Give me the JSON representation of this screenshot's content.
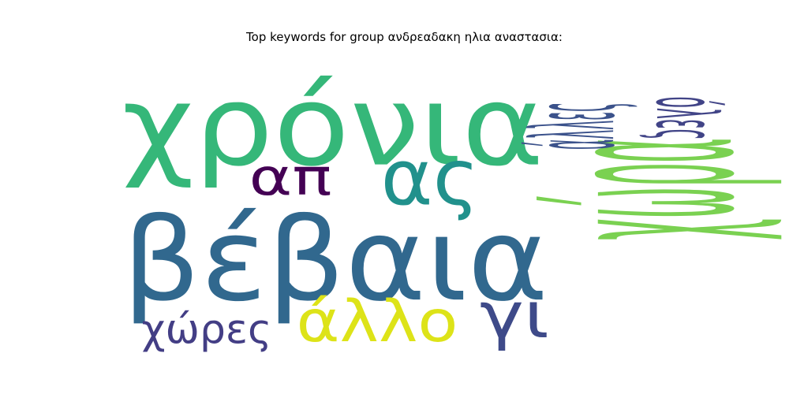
{
  "chart_data": {
    "type": "wordcloud",
    "title": "Top keywords for group ανδρεαδακη ηλια αναστασια:",
    "words": [
      {
        "text": "χρόνια",
        "weight": 1.0,
        "color": "#35b779"
      },
      {
        "text": "βέβαια",
        "weight": 0.98,
        "color": "#31688e"
      },
      {
        "text": "χώρα",
        "weight": 0.95,
        "color": "#7ad151"
      },
      {
        "text": "ας",
        "weight": 0.62,
        "color": "#21918c"
      },
      {
        "text": "άλλο",
        "weight": 0.48,
        "color": "#dde318"
      },
      {
        "text": "γι",
        "weight": 0.48,
        "color": "#3e4a89"
      },
      {
        "text": "απ",
        "weight": 0.42,
        "color": "#440154"
      },
      {
        "text": "χώρες",
        "weight": 0.34,
        "color": "#433e85"
      },
      {
        "text": "άλλες",
        "weight": 0.34,
        "color": "#3b528b"
      },
      {
        "text": "όλες",
        "weight": 0.3,
        "color": "#414487"
      }
    ]
  }
}
